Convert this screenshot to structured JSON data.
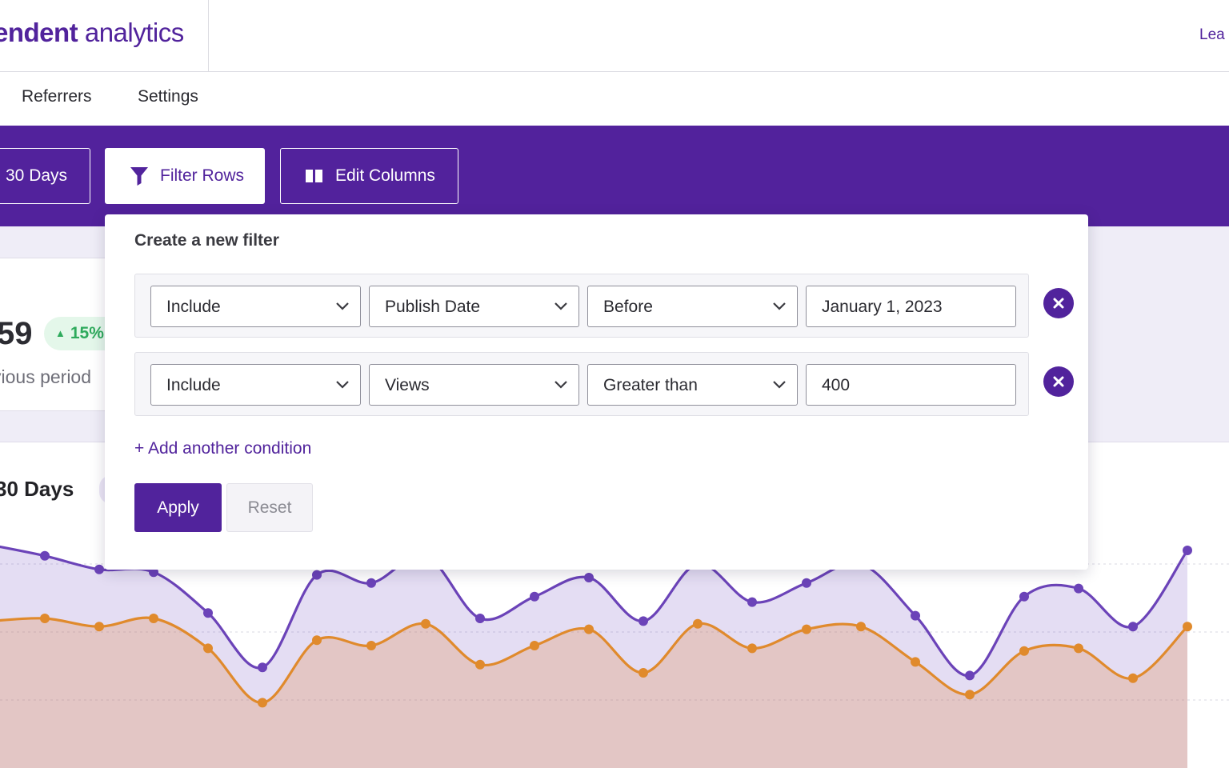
{
  "header": {
    "brand_bold": "endent",
    "brand_light": " analytics",
    "top_link": "Lea"
  },
  "nav": {
    "items": [
      {
        "label": "Referrers"
      },
      {
        "label": "Settings"
      }
    ]
  },
  "toolbar": {
    "range_label": "30 Days",
    "filter_label": "Filter Rows",
    "columns_label": "Edit Columns"
  },
  "stats": {
    "value": "59",
    "change": "15%",
    "caption": "vious period"
  },
  "chart_section": {
    "title": "30 Days"
  },
  "filter": {
    "title": "Create a new filter",
    "conditions": [
      {
        "mode": "Include",
        "field": "Publish Date",
        "operator": "Before",
        "value": "January 1, 2023"
      },
      {
        "mode": "Include",
        "field": "Views",
        "operator": "Greater than",
        "value": "400"
      }
    ],
    "add_condition": "+ Add another condition",
    "apply": "Apply",
    "reset": "Reset"
  },
  "colors": {
    "brand": "#51239c",
    "series_views": "#6b43b8",
    "series_visitors": "#e08a2c",
    "positive": "#2eaa5c"
  },
  "icons": {
    "filter": "funnel-icon",
    "columns": "columns-icon",
    "remove": "close-circle-icon",
    "dropdown": "chevron-down-icon"
  },
  "chart_data": {
    "type": "area",
    "x": [
      1,
      2,
      3,
      4,
      5,
      6,
      7,
      8,
      9,
      10,
      11,
      12,
      13,
      14,
      15,
      16,
      17,
      18,
      19,
      20,
      21,
      22,
      23
    ],
    "y_range": [
      0,
      100
    ],
    "grid": true,
    "series": [
      {
        "values": [
          82,
          78,
          73,
          72,
          57,
          37,
          71,
          68,
          78,
          55,
          63,
          70,
          54,
          75,
          61,
          68,
          75,
          56,
          34,
          63,
          66,
          52,
          80
        ]
      },
      {
        "values": [
          54,
          55,
          52,
          55,
          44,
          24,
          47,
          45,
          53,
          38,
          45,
          51,
          35,
          53,
          44,
          51,
          52,
          39,
          27,
          43,
          44,
          33,
          52
        ]
      }
    ]
  }
}
